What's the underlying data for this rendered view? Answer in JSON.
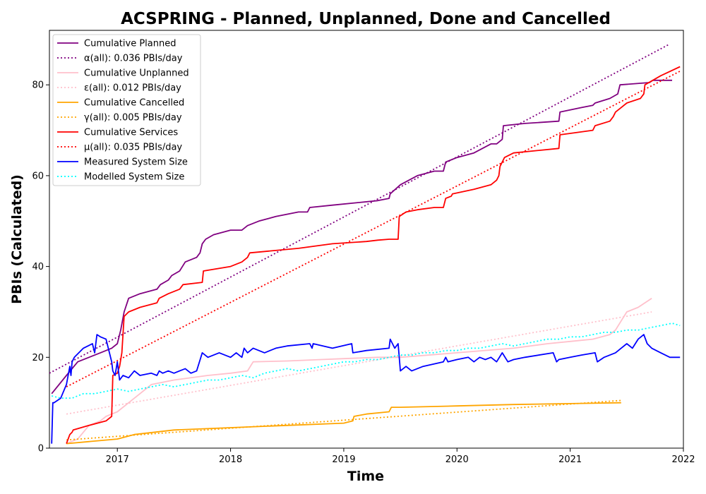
{
  "chart_data": {
    "type": "line",
    "title": "ACSPRING - Planned, Unplanned, Done  and Cancelled",
    "xlabel": "Time",
    "ylabel": "PBIs (Calculated)",
    "xlim": [
      2016.4,
      2022.0
    ],
    "ylim": [
      0,
      92
    ],
    "x_ticks": [
      2017,
      2018,
      2019,
      2020,
      2021,
      2022
    ],
    "x_tick_labels": [
      "2017",
      "2018",
      "2019",
      "2020",
      "2021",
      "2022"
    ],
    "y_ticks": [
      0,
      20,
      40,
      60,
      80
    ],
    "y_tick_labels": [
      "0",
      "20",
      "40",
      "60",
      "80"
    ],
    "grid": false,
    "legend_placement": "top-left",
    "series": [
      {
        "name": "Cumulative Planned",
        "style": "solid",
        "color": "#800080",
        "x": [
          2016.42,
          2016.55,
          2016.65,
          2016.75,
          2016.85,
          2016.95,
          2017.0,
          2017.03,
          2017.06,
          2017.1,
          2017.2,
          2017.35,
          2017.38,
          2017.45,
          2017.48,
          2017.55,
          2017.6,
          2017.7,
          2017.73,
          2017.75,
          2017.78,
          2017.85,
          2018.0,
          2018.1,
          2018.15,
          2018.25,
          2018.4,
          2018.6,
          2018.68,
          2018.7,
          2018.9,
          2019.1,
          2019.3,
          2019.4,
          2019.41,
          2019.5,
          2019.65,
          2019.8,
          2019.88,
          2019.9,
          2020.0,
          2020.15,
          2020.3,
          2020.35,
          2020.4,
          2020.41,
          2020.6,
          2020.9,
          2020.91,
          2021.1,
          2021.2,
          2021.22,
          2021.35,
          2021.42,
          2021.44,
          2021.7,
          2021.73,
          2021.9
        ],
        "y": [
          12,
          16,
          19,
          20,
          21,
          22,
          23,
          26,
          30,
          33,
          34,
          35,
          36,
          37,
          38,
          39,
          41,
          42,
          43,
          45,
          46,
          47,
          48,
          48,
          49,
          50,
          51,
          52,
          52,
          53,
          53.5,
          54,
          54.5,
          55,
          56,
          58,
          60,
          61,
          61,
          63,
          64,
          65,
          67,
          67,
          68,
          71,
          71.5,
          72,
          74,
          75,
          75.5,
          76,
          77,
          78,
          80,
          80.5,
          81,
          81
        ]
      },
      {
        "name": "α(all): 0.036 PBIs/day",
        "style": "dotted",
        "color": "#800080",
        "x": [
          2016.4,
          2021.88
        ],
        "y": [
          16.5,
          89
        ]
      },
      {
        "name": "Cumulative Unplanned",
        "style": "solid",
        "color": "#ffc0cb",
        "x": [
          2016.55,
          2016.65,
          2016.75,
          2016.85,
          2016.9,
          2017.0,
          2017.1,
          2017.2,
          2017.3,
          2017.5,
          2017.8,
          2018.0,
          2018.15,
          2018.2,
          2018.5,
          2018.8,
          2019.0,
          2019.3,
          2019.5,
          2020.0,
          2020.5,
          2020.8,
          2021.0,
          2021.2,
          2021.35,
          2021.4,
          2021.45,
          2021.5,
          2021.6,
          2021.72
        ],
        "y": [
          1,
          2,
          5,
          6,
          7,
          8,
          10,
          12,
          14,
          15,
          16,
          16.5,
          17,
          19,
          19.2,
          19.5,
          19.7,
          20,
          20,
          21,
          22,
          23,
          23.5,
          24,
          25,
          26,
          28,
          30,
          31,
          33
        ]
      },
      {
        "name": "ε(all): 0.012 PBIs/day",
        "style": "dotted",
        "color": "#ffc0cb",
        "x": [
          2016.55,
          2021.72
        ],
        "y": [
          7.5,
          30
        ]
      },
      {
        "name": "Cumulative Cancelled",
        "style": "solid",
        "color": "#ffa500",
        "x": [
          2016.55,
          2017.0,
          2017.15,
          2017.5,
          2018.0,
          2018.5,
          2019.0,
          2019.08,
          2019.09,
          2019.2,
          2019.4,
          2019.42,
          2019.5,
          2020.0,
          2020.5,
          2021.0,
          2021.45
        ],
        "y": [
          1,
          2,
          3,
          4,
          4.5,
          5,
          5.5,
          6,
          7,
          7.5,
          8,
          9,
          9,
          9.3,
          9.6,
          9.8,
          10
        ]
      },
      {
        "name": "γ(all): 0.005 PBIs/day",
        "style": "dotted",
        "color": "#ffa500",
        "x": [
          2016.55,
          2021.45
        ],
        "y": [
          1.8,
          10.5
        ]
      },
      {
        "name": "Cumulative Services",
        "style": "solid",
        "color": "#ff0000",
        "x": [
          2016.55,
          2016.58,
          2016.6,
          2016.61,
          2016.75,
          2016.9,
          2016.95,
          2016.96,
          2017.0,
          2017.02,
          2017.04,
          2017.05,
          2017.06,
          2017.1,
          2017.2,
          2017.35,
          2017.37,
          2017.45,
          2017.55,
          2017.58,
          2017.75,
          2017.76,
          2018.0,
          2018.1,
          2018.15,
          2018.17,
          2018.6,
          2018.9,
          2019.2,
          2019.3,
          2019.4,
          2019.48,
          2019.49,
          2019.55,
          2019.65,
          2019.8,
          2019.88,
          2019.9,
          2019.95,
          2019.96,
          2020.15,
          2020.3,
          2020.35,
          2020.37,
          2020.38,
          2020.42,
          2020.5,
          2020.9,
          2020.91,
          2021.2,
          2021.22,
          2021.35,
          2021.38,
          2021.4,
          2021.45,
          2021.5,
          2021.62,
          2021.65,
          2021.66,
          2021.8,
          2021.97
        ],
        "y": [
          1,
          3,
          3.5,
          4,
          5,
          6,
          7,
          16,
          16.5,
          18,
          21,
          25,
          29,
          30,
          31,
          32,
          33,
          34,
          35,
          36,
          36.5,
          39,
          40,
          41,
          42,
          43,
          44,
          45,
          45.5,
          45.8,
          46,
          46,
          51,
          52,
          52.5,
          53,
          53,
          55,
          55.5,
          56,
          57,
          58,
          59,
          60,
          62,
          64,
          65,
          66,
          69,
          70,
          71,
          72,
          73,
          74,
          75,
          76,
          77,
          78,
          80,
          82,
          84
        ]
      },
      {
        "name": "μ(all): 0.035 PBIs/day",
        "style": "dotted",
        "color": "#ff0000",
        "x": [
          2016.55,
          2021.97
        ],
        "y": [
          13.5,
          83
        ]
      },
      {
        "name": "Measured System Size",
        "style": "solid",
        "color": "#0000ff",
        "x": [
          2016.42,
          2016.43,
          2016.44,
          2016.5,
          2016.55,
          2016.58,
          2016.59,
          2016.6,
          2016.62,
          2016.7,
          2016.78,
          2016.8,
          2016.82,
          2016.85,
          2016.9,
          2016.95,
          2016.96,
          2016.98,
          2017.0,
          2017.02,
          2017.05,
          2017.1,
          2017.15,
          2017.2,
          2017.3,
          2017.35,
          2017.37,
          2017.4,
          2017.45,
          2017.5,
          2017.55,
          2017.6,
          2017.65,
          2017.7,
          2017.75,
          2017.8,
          2017.9,
          2018.0,
          2018.05,
          2018.1,
          2018.12,
          2018.15,
          2018.2,
          2018.3,
          2018.4,
          2018.5,
          2018.7,
          2018.72,
          2018.73,
          2018.9,
          2019.07,
          2019.08,
          2019.2,
          2019.4,
          2019.41,
          2019.45,
          2019.48,
          2019.5,
          2019.55,
          2019.6,
          2019.7,
          2019.88,
          2019.9,
          2019.92,
          2020.0,
          2020.1,
          2020.15,
          2020.2,
          2020.25,
          2020.3,
          2020.35,
          2020.4,
          2020.45,
          2020.5,
          2020.6,
          2020.85,
          2020.88,
          2020.9,
          2021.0,
          2021.1,
          2021.22,
          2021.24,
          2021.3,
          2021.4,
          2021.45,
          2021.5,
          2021.55,
          2021.6,
          2021.65,
          2021.68,
          2021.72,
          2021.8,
          2021.88,
          2021.97
        ],
        "y": [
          1,
          10,
          10,
          11,
          14,
          18,
          16,
          19,
          20,
          22,
          23,
          21,
          25,
          24.5,
          24,
          19,
          17,
          16,
          19,
          15,
          16,
          15.5,
          17,
          16,
          16.5,
          16,
          17,
          16.5,
          17,
          16.5,
          17,
          17.5,
          16.5,
          17,
          21,
          20,
          21,
          20,
          21,
          20,
          22,
          21,
          22,
          21,
          22,
          22.5,
          23,
          22,
          23,
          22,
          23,
          21,
          21.5,
          22,
          24,
          22,
          23,
          17,
          18,
          17,
          18,
          19,
          20,
          19,
          19.5,
          20,
          19,
          20,
          19.5,
          20,
          19,
          21,
          19,
          19.5,
          20,
          21,
          19,
          19.5,
          20,
          20.5,
          21,
          19,
          20,
          21,
          22,
          23,
          22,
          24,
          25,
          23,
          22,
          21,
          20,
          20
        ]
      },
      {
        "name": "Modelled System Size",
        "style": "dotted",
        "color": "#00ffff",
        "x": [
          2016.42,
          2016.5,
          2016.6,
          2016.7,
          2016.8,
          2016.9,
          2017.0,
          2017.1,
          2017.2,
          2017.3,
          2017.4,
          2017.5,
          2017.6,
          2017.7,
          2017.8,
          2017.9,
          2018.0,
          2018.1,
          2018.2,
          2018.3,
          2018.4,
          2018.5,
          2018.6,
          2018.7,
          2018.8,
          2018.9,
          2019.0,
          2019.1,
          2019.2,
          2019.3,
          2019.4,
          2019.5,
          2019.6,
          2019.7,
          2019.8,
          2019.9,
          2020.0,
          2020.1,
          2020.2,
          2020.3,
          2020.4,
          2020.5,
          2020.6,
          2020.7,
          2020.8,
          2020.9,
          2021.0,
          2021.1,
          2021.2,
          2021.3,
          2021.4,
          2021.5,
          2021.6,
          2021.7,
          2021.8,
          2021.9,
          2021.97
        ],
        "y": [
          11.5,
          11,
          11,
          12,
          12,
          12.5,
          13,
          12.5,
          13,
          13.5,
          14,
          13.5,
          14,
          14.5,
          15,
          15,
          15.5,
          16,
          15.5,
          16.5,
          17,
          17.5,
          17,
          17.5,
          18,
          18.5,
          19,
          19,
          19.5,
          19.5,
          20,
          20.5,
          20.5,
          21,
          21,
          21.5,
          21.5,
          22,
          22,
          22.5,
          23,
          22.5,
          23,
          23.5,
          24,
          24,
          24.5,
          24.5,
          25,
          25.5,
          25.5,
          26,
          26,
          26.5,
          27,
          27.5,
          27
        ]
      }
    ]
  }
}
